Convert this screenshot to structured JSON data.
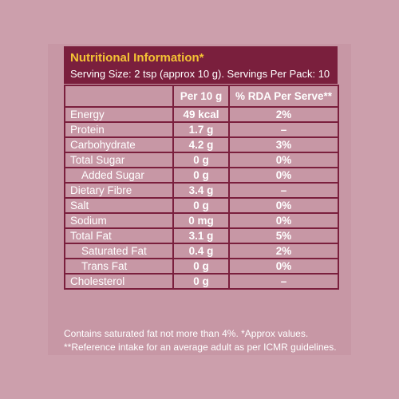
{
  "title": "Nutritional Information*",
  "serving": "Serving Size: 2 tsp (approx 10 g). Servings Per Pack: 10",
  "columns": [
    "",
    "Per 10 g",
    "% RDA Per Serve**"
  ],
  "rows": [
    {
      "name": "Energy",
      "per": "49 kcal",
      "rda": "2%"
    },
    {
      "name": "Protein",
      "per": "1.7 g",
      "rda": "–"
    },
    {
      "name": "Carbohydrate",
      "per": "4.2 g",
      "rda": "3%"
    },
    {
      "name": "Total Sugar",
      "per": "0 g",
      "rda": "0%"
    },
    {
      "name": "Added Sugar",
      "per": "0 g",
      "rda": "0%"
    },
    {
      "name": "Dietary Fibre",
      "per": "3.4 g",
      "rda": "–"
    },
    {
      "name": "Salt",
      "per": "0 g",
      "rda": "0%"
    },
    {
      "name": "Sodium",
      "per": "0 mg",
      "rda": "0%"
    },
    {
      "name": "Total Fat",
      "per": "3.1 g",
      "rda": "5%"
    },
    {
      "name": "Saturated Fat",
      "per": "0.4 g",
      "rda": "2%"
    },
    {
      "name": "Trans Fat",
      "per": "0 g",
      "rda": "0%"
    },
    {
      "name": "Cholesterol",
      "per": "0 g",
      "rda": "–"
    }
  ],
  "footnote1": "Contains saturated fat not more than 4%. *Approx values.",
  "footnote2": "**Reference intake for an average adult as per ICMR guidelines.",
  "colors": {
    "background": "#cc9fac",
    "header": "#7a1f3d",
    "title": "#f4c234",
    "text": "#ffffff"
  }
}
